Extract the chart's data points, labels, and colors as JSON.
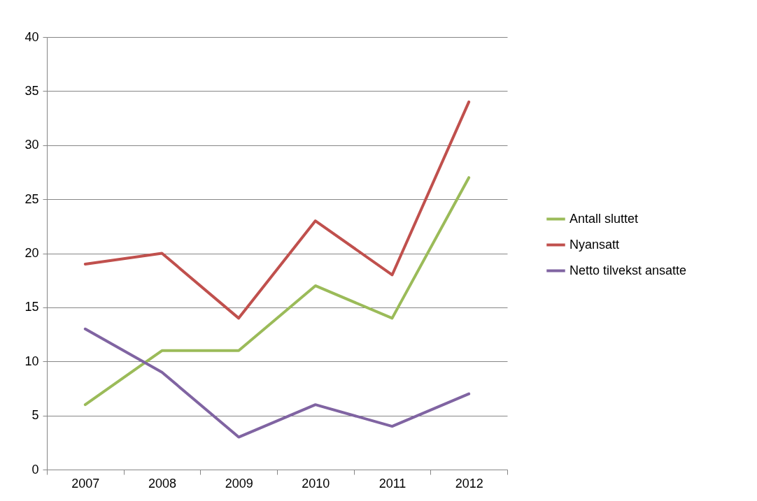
{
  "chart_data": {
    "type": "line",
    "categories": [
      "2007",
      "2008",
      "2009",
      "2010",
      "2011",
      "2012"
    ],
    "series": [
      {
        "name": "Antall sluttet",
        "color": "#9bbb59",
        "values": [
          6,
          11,
          11,
          17,
          14,
          27
        ]
      },
      {
        "name": "Nyansatt",
        "color": "#c0504d",
        "values": [
          19,
          20,
          14,
          23,
          18,
          34
        ]
      },
      {
        "name": "Netto tilvekst ansatte",
        "color": "#8064a2",
        "values": [
          13,
          9,
          3,
          6,
          4,
          7
        ]
      }
    ],
    "ylim": [
      0,
      40
    ],
    "yticks": [
      0,
      5,
      10,
      15,
      20,
      25,
      30,
      35,
      40
    ],
    "grid": "y",
    "legend": "right",
    "marker": "none",
    "line_style": "solid"
  }
}
